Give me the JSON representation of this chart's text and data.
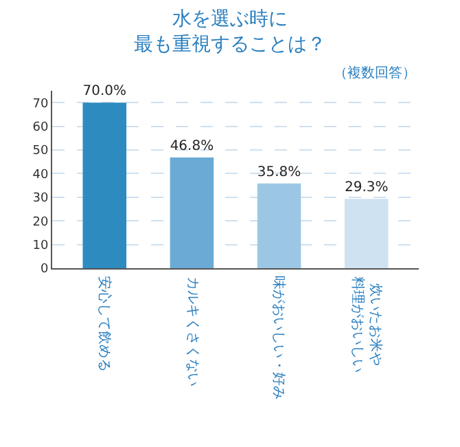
{
  "chart_data": {
    "type": "bar",
    "title": "水を選ぶ時に最も重視することは？",
    "categories": [
      "安心して飲める",
      "カルキくさくない",
      "味がおいしい・好み",
      "炊いたお米や料理がおいしい"
    ],
    "values": [
      70.0,
      46.8,
      35.8,
      29.3
    ],
    "colors": [
      "#2e8bc0",
      "#6aaad4",
      "#9cc7e4",
      "#cfe2f1"
    ],
    "value_labels": [
      "70.0%",
      "46.8%",
      "35.8%",
      "29.3%"
    ],
    "annotations": [
      "（複数回答）"
    ],
    "ylim": [
      0,
      75
    ],
    "yticks": [
      0,
      10,
      20,
      30,
      40,
      50,
      60,
      70
    ],
    "grid": "y",
    "legend": false
  }
}
